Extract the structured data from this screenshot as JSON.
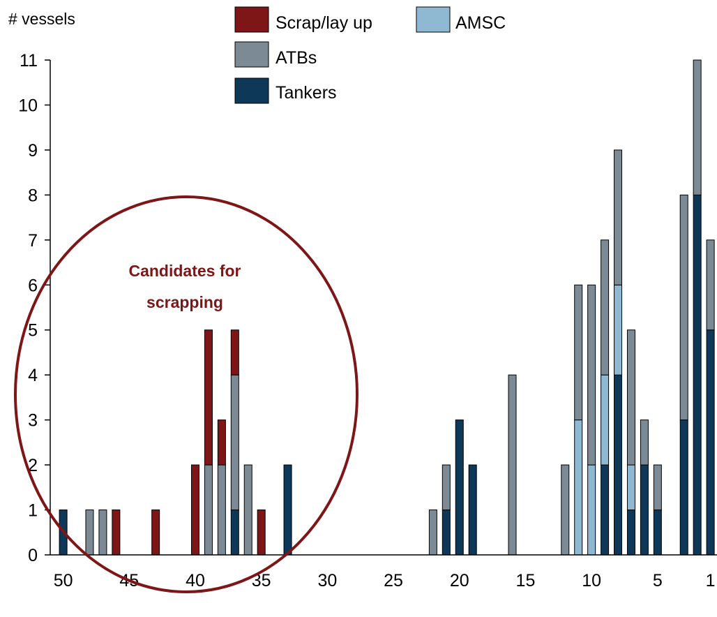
{
  "chart_data": {
    "type": "bar",
    "stacked": true,
    "ylabel": "# vessels",
    "xlabel": "",
    "ylim": [
      0,
      11
    ],
    "y_ticks": [
      0,
      1,
      2,
      3,
      4,
      5,
      6,
      7,
      8,
      9,
      10,
      11
    ],
    "xlim": [
      50,
      1
    ],
    "x_ticks": [
      50,
      45,
      40,
      35,
      30,
      25,
      20,
      15,
      10,
      5,
      1
    ],
    "x_axis_reversed": true,
    "grid": false,
    "legend_position": "top-center",
    "series": [
      {
        "name": "Tankers",
        "color": "#0e3858"
      },
      {
        "name": "AMSC",
        "color": "#8fb8d2"
      },
      {
        "name": "ATBs",
        "color": "#7b8a95"
      },
      {
        "name": "Scrap/lay up",
        "color": "#7e1517"
      }
    ],
    "legend_order": [
      "Scrap/lay up",
      "AMSC",
      "ATBs",
      "Tankers"
    ],
    "bars": [
      {
        "x": 50,
        "Tankers": 1,
        "AMSC": 0,
        "ATBs": 0,
        "Scrap/lay up": 0
      },
      {
        "x": 48,
        "Tankers": 0,
        "AMSC": 0,
        "ATBs": 1,
        "Scrap/lay up": 0
      },
      {
        "x": 47,
        "Tankers": 0,
        "AMSC": 0,
        "ATBs": 1,
        "Scrap/lay up": 0
      },
      {
        "x": 46,
        "Tankers": 0,
        "AMSC": 0,
        "ATBs": 0,
        "Scrap/lay up": 1
      },
      {
        "x": 43,
        "Tankers": 0,
        "AMSC": 0,
        "ATBs": 0,
        "Scrap/lay up": 1
      },
      {
        "x": 40,
        "Tankers": 0,
        "AMSC": 0,
        "ATBs": 0,
        "Scrap/lay up": 2
      },
      {
        "x": 39,
        "Tankers": 0,
        "AMSC": 0,
        "ATBs": 2,
        "Scrap/lay up": 3
      },
      {
        "x": 38,
        "Tankers": 0,
        "AMSC": 0,
        "ATBs": 2,
        "Scrap/lay up": 1
      },
      {
        "x": 37,
        "Tankers": 1,
        "AMSC": 0,
        "ATBs": 3,
        "Scrap/lay up": 1
      },
      {
        "x": 36,
        "Tankers": 0,
        "AMSC": 0,
        "ATBs": 2,
        "Scrap/lay up": 0
      },
      {
        "x": 35,
        "Tankers": 0,
        "AMSC": 0,
        "ATBs": 0,
        "Scrap/lay up": 1
      },
      {
        "x": 33,
        "Tankers": 2,
        "AMSC": 0,
        "ATBs": 0,
        "Scrap/lay up": 0
      },
      {
        "x": 22,
        "Tankers": 0,
        "AMSC": 0,
        "ATBs": 1,
        "Scrap/lay up": 0
      },
      {
        "x": 21,
        "Tankers": 1,
        "AMSC": 0,
        "ATBs": 1,
        "Scrap/lay up": 0
      },
      {
        "x": 20,
        "Tankers": 3,
        "AMSC": 0,
        "ATBs": 0,
        "Scrap/lay up": 0
      },
      {
        "x": 19,
        "Tankers": 2,
        "AMSC": 0,
        "ATBs": 0,
        "Scrap/lay up": 0
      },
      {
        "x": 16,
        "Tankers": 0,
        "AMSC": 0,
        "ATBs": 4,
        "Scrap/lay up": 0
      },
      {
        "x": 12,
        "Tankers": 0,
        "AMSC": 0,
        "ATBs": 2,
        "Scrap/lay up": 0
      },
      {
        "x": 11,
        "Tankers": 0,
        "AMSC": 3,
        "ATBs": 3,
        "Scrap/lay up": 0
      },
      {
        "x": 10,
        "Tankers": 0,
        "AMSC": 2,
        "ATBs": 4,
        "Scrap/lay up": 0
      },
      {
        "x": 9,
        "Tankers": 2,
        "AMSC": 2,
        "ATBs": 3,
        "Scrap/lay up": 0
      },
      {
        "x": 8,
        "Tankers": 4,
        "AMSC": 2,
        "ATBs": 3,
        "Scrap/lay up": 0
      },
      {
        "x": 7,
        "Tankers": 1,
        "AMSC": 1,
        "ATBs": 3,
        "Scrap/lay up": 0
      },
      {
        "x": 6,
        "Tankers": 2,
        "AMSC": 0,
        "ATBs": 1,
        "Scrap/lay up": 0
      },
      {
        "x": 5,
        "Tankers": 1,
        "AMSC": 0,
        "ATBs": 1,
        "Scrap/lay up": 0
      },
      {
        "x": 3,
        "Tankers": 3,
        "AMSC": 0,
        "ATBs": 5,
        "Scrap/lay up": 0
      },
      {
        "x": 2,
        "Tankers": 8,
        "AMSC": 0,
        "ATBs": 3,
        "Scrap/lay up": 0
      },
      {
        "x": 1,
        "Tankers": 5,
        "AMSC": 0,
        "ATBs": 2,
        "Scrap/lay up": 0
      }
    ],
    "annotations": [
      {
        "text": "Candidates for scrapping",
        "lines": [
          "Candidates for",
          "scrapping"
        ],
        "color": "#7e1517",
        "shape": "ellipse"
      }
    ]
  }
}
